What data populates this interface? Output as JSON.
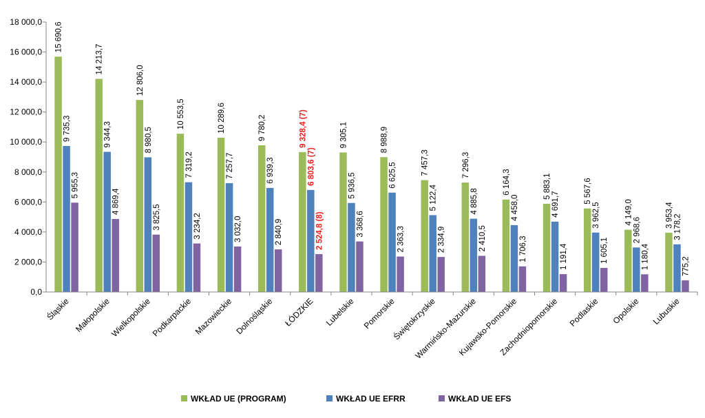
{
  "chart_data": {
    "type": "bar",
    "title": "",
    "xlabel": "",
    "ylabel": "",
    "ylim": [
      0,
      18000
    ],
    "ytick_step": 2000,
    "ytick_labels": [
      "0,0",
      "2 000,0",
      "4 000,0",
      "6 000,0",
      "8 000,0",
      "10 000,0",
      "12 000,0",
      "14 000,0",
      "16 000,0",
      "18 000,0"
    ],
    "grid": false,
    "legend_position": "bottom",
    "categories": [
      "Śląskie",
      "Małopolskie",
      "Wielkopolskie",
      "Podkarpackie",
      "Mazowieckie",
      "Dolnośląskie",
      "ŁÓDZKIE",
      "Lubelskie",
      "Pomorskie",
      "Świętokrzyskie",
      "Warmińsko-Mazurskie",
      "Kujawsko-Pomorskie",
      "Zachodniopomorskie",
      "Podlaskie",
      "Opolskie",
      "Lubuskie"
    ],
    "highlight_category_index": 6,
    "highlight_color": "#e8201e",
    "series": [
      {
        "name": "WKŁAD UE (PROGRAM)",
        "color": "#9bbb59",
        "values": [
          15690.6,
          14213.7,
          12806.0,
          10553.5,
          10289.6,
          9780.2,
          9328.4,
          9305.1,
          8988.9,
          7457.3,
          7296.3,
          6164.3,
          5883.1,
          5567.6,
          4149.0,
          3953.4
        ],
        "labels": [
          "15 690,6",
          "14 213,7",
          "12 806,0",
          "10 553,5",
          "10 289,6",
          "9 780,2",
          "9 328,4 (7)",
          "9 305,1",
          "8 988,9",
          "7 457,3",
          "7 296,3",
          "6 164,3",
          "5 883,1",
          "5 567,6",
          "4 149,0",
          "3 953,4"
        ]
      },
      {
        "name": "WKŁAD UE EFRR",
        "color": "#4f81bd",
        "values": [
          9735.3,
          9344.3,
          8980.5,
          7319.2,
          7257.7,
          6939.3,
          6803.6,
          5936.5,
          6625.5,
          5122.4,
          4885.8,
          4458.0,
          4691.7,
          3962.5,
          2968.6,
          3178.2
        ],
        "labels": [
          "9 735,3",
          "9 344,3",
          "8 980,5",
          "7 319,2",
          "7 257,7",
          "6 939,3",
          "6 803,6 (7)",
          "5 936,5",
          "6 625,5",
          "5 122,4",
          "4 885,8",
          "4 458,0",
          "4 691,7",
          "3 962,5",
          "2 968,6",
          "3 178,2"
        ]
      },
      {
        "name": "WKŁAD UE EFS",
        "color": "#8064a2",
        "values": [
          5955.3,
          4869.4,
          3825.5,
          3234.2,
          3032.0,
          2840.9,
          2524.8,
          3368.6,
          2363.3,
          2334.9,
          2410.5,
          1706.3,
          1191.4,
          1605.1,
          1180.4,
          775.2
        ],
        "labels": [
          "5 955,3",
          "4 869,4",
          "3 825,5",
          "3 234,2",
          "3 032,0",
          "2 840,9",
          "2 524,8 (8)",
          "3 368,6",
          "2 363,3",
          "2 334,9",
          "2 410,5",
          "1 706,3",
          "1 191,4",
          "1 605,1",
          "1 180,4",
          "775,2"
        ]
      }
    ]
  }
}
